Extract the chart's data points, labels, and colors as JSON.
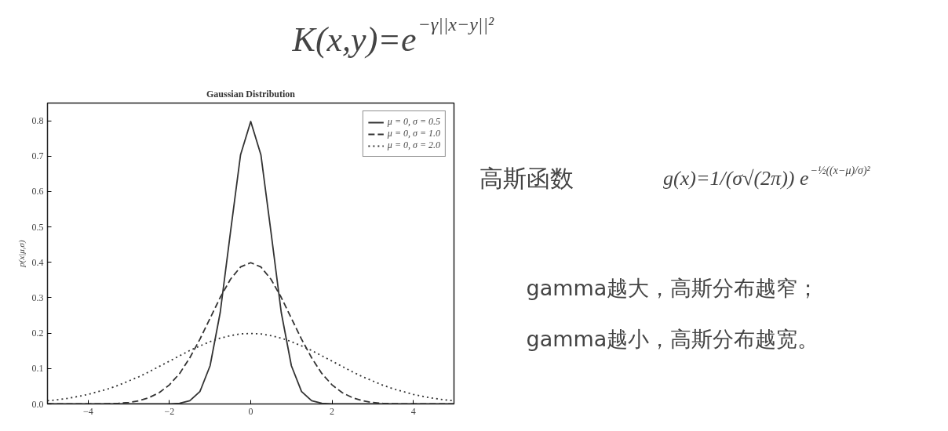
{
  "chart_data": {
    "type": "line",
    "title": "Gaussian Distribution",
    "ylabel": "p(x|μ,σ)",
    "annotations": [
      "K(x,y)=e$^{−γ||x−y||²}$",
      "高斯函数",
      "g(x)=1/(σ√(2π)) e$^{−½((x−μ)/σ)²}$",
      "gamma越大，高斯分布越窄；",
      "gamma越小，高斯分布越宽。"
    ],
    "x": [
      -5,
      -4.75,
      -4.5,
      -4.25,
      -4,
      -3.75,
      -3.5,
      -3.25,
      -3,
      -2.75,
      -2.5,
      -2.25,
      -2,
      -1.75,
      -1.5,
      -1.25,
      -1,
      -0.75,
      -0.5,
      -0.25,
      0,
      0.25,
      0.5,
      0.75,
      1,
      1.25,
      1.5,
      1.75,
      2,
      2.25,
      2.5,
      2.75,
      3,
      3.25,
      3.5,
      3.75,
      4,
      4.25,
      4.5,
      4.75,
      5
    ],
    "series": [
      {
        "name": "μ = 0, σ = 0.5",
        "color": "#333333",
        "line_style": "solid",
        "values": [
          0,
          0,
          0,
          0,
          0,
          0,
          0,
          0,
          0,
          0,
          0,
          0,
          0,
          0.002,
          0.009,
          0.035,
          0.108,
          0.259,
          0.484,
          0.704,
          0.798,
          0.704,
          0.484,
          0.259,
          0.108,
          0.035,
          0.009,
          0.002,
          0,
          0,
          0,
          0,
          0,
          0,
          0,
          0,
          0,
          0,
          0,
          0,
          0
        ]
      },
      {
        "name": "μ = 0, σ = 1.0",
        "color": "#333333",
        "line_style": "dashed",
        "values": [
          0,
          0,
          0,
          0,
          0,
          0,
          0.001,
          0.002,
          0.004,
          0.009,
          0.018,
          0.032,
          0.054,
          0.086,
          0.13,
          0.183,
          0.242,
          0.301,
          0.352,
          0.387,
          0.399,
          0.387,
          0.352,
          0.301,
          0.242,
          0.183,
          0.13,
          0.086,
          0.054,
          0.032,
          0.018,
          0.009,
          0.004,
          0.002,
          0.001,
          0,
          0,
          0,
          0,
          0,
          0
        ]
      },
      {
        "name": "μ = 0, σ = 2.0",
        "color": "#333333",
        "line_style": "dotted",
        "values": [
          0.009,
          0.012,
          0.016,
          0.021,
          0.027,
          0.035,
          0.043,
          0.053,
          0.065,
          0.077,
          0.091,
          0.106,
          0.121,
          0.136,
          0.151,
          0.164,
          0.176,
          0.186,
          0.193,
          0.198,
          0.199,
          0.198,
          0.193,
          0.186,
          0.176,
          0.164,
          0.151,
          0.136,
          0.121,
          0.106,
          0.091,
          0.077,
          0.065,
          0.053,
          0.043,
          0.035,
          0.027,
          0.021,
          0.016,
          0.012,
          0.009
        ]
      }
    ],
    "xlim": [
      -5,
      5
    ],
    "xticks": [
      {
        "value": -4,
        "label": "−4"
      },
      {
        "value": -2,
        "label": "−2"
      },
      0,
      2,
      4
    ],
    "ylim": [
      0,
      0.85
    ],
    "yticks": [
      {
        "value": 0,
        "label": "0.0"
      },
      0.1,
      0.2,
      0.3,
      0.4,
      0.5,
      0.6,
      0.7,
      0.8
    ],
    "grid": false,
    "legend": "top right"
  }
}
